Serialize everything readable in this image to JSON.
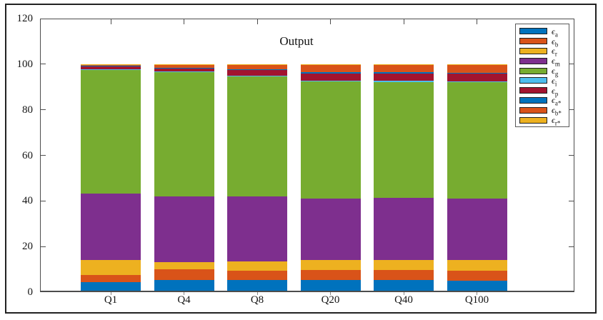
{
  "figure": {
    "border_color": "#222222",
    "background": "#ffffff",
    "axis_color": "#4d4d4d",
    "text_color": "#141414"
  },
  "axes": {
    "y_ticks": [
      0,
      20,
      40,
      60,
      80,
      100,
      120
    ],
    "y_min": 0,
    "y_max": 120
  },
  "chart_data": {
    "type": "bar",
    "stacked": true,
    "title": "Output",
    "categories": [
      "Q1",
      "Q4",
      "Q8",
      "Q20",
      "Q40",
      "Q100"
    ],
    "series": [
      {
        "key": "eps_a",
        "name": "ϵ_a",
        "symbol": "ϵ",
        "sub": "a",
        "color": "#0072BD",
        "values": [
          4.5,
          5.3,
          5.3,
          5.3,
          5.3,
          5.1
        ]
      },
      {
        "key": "eps_b",
        "name": "ϵ_b",
        "symbol": "ϵ",
        "sub": "b",
        "color": "#D95319",
        "values": [
          3.0,
          4.7,
          4.2,
          4.4,
          4.4,
          4.4
        ]
      },
      {
        "key": "eps_r",
        "name": "ϵ_r",
        "symbol": "ϵ",
        "sub": "r",
        "color": "#EDB120",
        "values": [
          6.5,
          3.1,
          3.9,
          4.5,
          4.3,
          4.5
        ]
      },
      {
        "key": "eps_m",
        "name": "ϵ_m",
        "symbol": "ϵ",
        "sub": "m",
        "color": "#7E2F8E",
        "values": [
          29.3,
          28.8,
          28.5,
          26.9,
          27.4,
          27.1
        ]
      },
      {
        "key": "eps_g",
        "name": "ϵ_g",
        "symbol": "ϵ",
        "sub": "g",
        "color": "#77AC30",
        "values": [
          54.5,
          54.8,
          53.0,
          51.3,
          50.8,
          51.0
        ]
      },
      {
        "key": "eps_i",
        "name": "ϵ_i",
        "symbol": "ϵ",
        "sub": "i",
        "color": "#4DBEEE",
        "values": [
          0.1,
          0.1,
          0.1,
          0.3,
          0.4,
          0.4
        ]
      },
      {
        "key": "eps_p",
        "name": "ϵ_p",
        "symbol": "ϵ",
        "sub": "p",
        "color": "#A2142F",
        "values": [
          1.4,
          1.6,
          2.3,
          3.3,
          3.4,
          3.4
        ]
      },
      {
        "key": "eps_a_star",
        "name": "ϵ_a*",
        "symbol": "ϵ",
        "sub": "a*",
        "color": "#0072BD",
        "values": [
          0.1,
          0.1,
          0.6,
          0.5,
          0.4,
          0.4
        ]
      },
      {
        "key": "eps_b_star",
        "name": "ϵ_b*",
        "symbol": "ϵ",
        "sub": "b*",
        "color": "#D95319",
        "values": [
          0.6,
          1.4,
          2.1,
          3.5,
          3.6,
          3.7
        ]
      },
      {
        "key": "eps_r_star",
        "name": "ϵ_r*",
        "symbol": "ϵ",
        "sub": "r*",
        "color": "#EDB120",
        "values": [
          0.1,
          0.1,
          0.1,
          0.1,
          0.1,
          0.1
        ]
      }
    ],
    "ylim": [
      0,
      120
    ],
    "units": "percent of total (bars sum to ~100)",
    "grid": false,
    "legend_position": "top-right"
  }
}
